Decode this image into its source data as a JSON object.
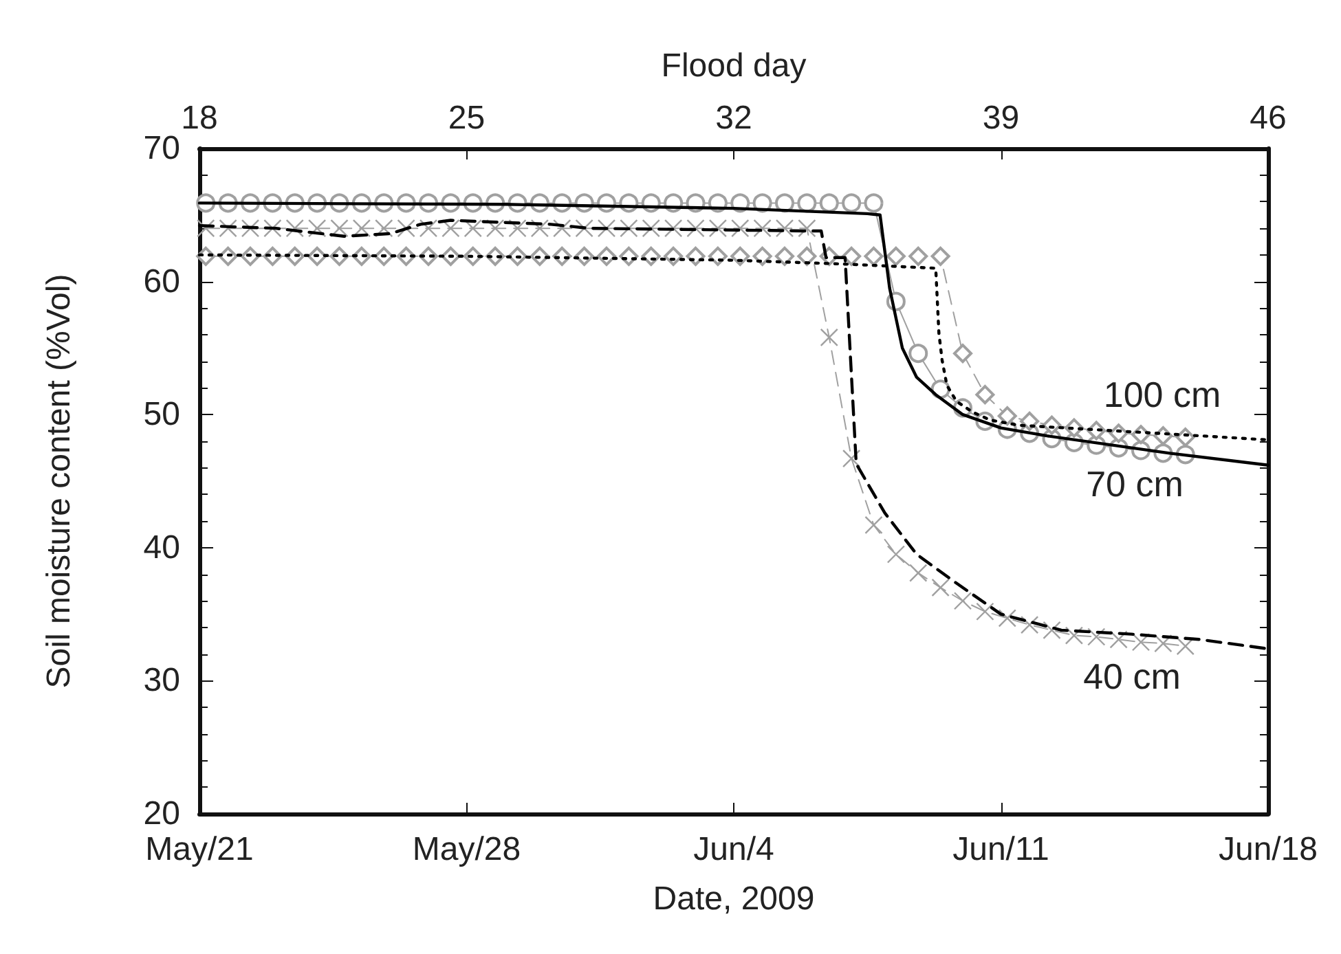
{
  "chart_data": {
    "type": "line",
    "xlabel": "Date, 2009",
    "ylabel": "Soil moisture content (%Vol)",
    "x2label": "Flood day",
    "xlim": [
      "2009-05-21",
      "2009-06-18"
    ],
    "xticks": [
      {
        "value": "2009-05-21",
        "label": "May/21"
      },
      {
        "value": "2009-05-28",
        "label": "May/28"
      },
      {
        "value": "2009-06-04",
        "label": "Jun/4"
      },
      {
        "value": "2009-06-11",
        "label": "Jun/11"
      },
      {
        "value": "2009-06-18",
        "label": "Jun/18"
      }
    ],
    "x2lim": [
      18,
      46
    ],
    "x2ticks": [
      18,
      25,
      32,
      39,
      46
    ],
    "ylim": [
      20,
      70
    ],
    "yticks": [
      20,
      30,
      40,
      50,
      60,
      70
    ],
    "grid": false,
    "series": [
      {
        "color": "#a0a0a0",
        "marker": "circle",
        "line_style": "solid",
        "x": [
          "2009-05-21T04:00",
          "2009-05-21T18:00",
          "2009-05-22T08:00",
          "2009-05-22T22:00",
          "2009-05-23T12:00",
          "2009-05-24T02:00",
          "2009-05-24T16:00",
          "2009-05-25T06:00",
          "2009-05-25T20:00",
          "2009-05-26T10:00",
          "2009-05-27T00:00",
          "2009-05-27T14:00",
          "2009-05-28T04:00",
          "2009-05-28T18:00",
          "2009-05-29T08:00",
          "2009-05-29T22:00",
          "2009-05-30T12:00",
          "2009-05-31T02:00",
          "2009-05-31T16:00",
          "2009-06-01T06:00",
          "2009-06-01T20:00",
          "2009-06-02T10:00",
          "2009-06-03T00:00",
          "2009-06-03T14:00",
          "2009-06-04T04:00",
          "2009-06-04T18:00",
          "2009-06-05T08:00",
          "2009-06-05T22:00",
          "2009-06-06T12:00",
          "2009-06-07T02:00",
          "2009-06-07T16:00",
          "2009-06-08T06:00",
          "2009-06-08T20:00",
          "2009-06-09T10:00",
          "2009-06-10T00:00",
          "2009-06-10T14:00",
          "2009-06-11T04:00",
          "2009-06-11T18:00",
          "2009-06-12T08:00",
          "2009-06-12T22:00",
          "2009-06-13T12:00",
          "2009-06-14T02:00",
          "2009-06-14T16:00",
          "2009-06-15T06:00",
          "2009-06-15T20:00"
        ],
        "values": [
          65.9,
          65.9,
          65.9,
          65.9,
          65.9,
          65.9,
          65.9,
          65.9,
          65.9,
          65.9,
          65.9,
          65.9,
          65.9,
          65.9,
          65.9,
          65.9,
          65.9,
          65.9,
          65.9,
          65.9,
          65.9,
          65.9,
          65.9,
          65.9,
          65.9,
          65.9,
          65.9,
          65.9,
          65.9,
          65.9,
          65.9,
          58.5,
          54.6,
          51.9,
          50.5,
          49.5,
          48.9,
          48.6,
          48.2,
          47.9,
          47.7,
          47.5,
          47.3,
          47.1,
          47.0
        ]
      },
      {
        "color": "#a0a0a0",
        "marker": "diamond",
        "line_style": "dashed",
        "x": [
          "2009-05-21T04:00",
          "2009-05-21T18:00",
          "2009-05-22T08:00",
          "2009-05-22T22:00",
          "2009-05-23T12:00",
          "2009-05-24T02:00",
          "2009-05-24T16:00",
          "2009-05-25T06:00",
          "2009-05-25T20:00",
          "2009-05-26T10:00",
          "2009-05-27T00:00",
          "2009-05-27T14:00",
          "2009-05-28T04:00",
          "2009-05-28T18:00",
          "2009-05-29T08:00",
          "2009-05-29T22:00",
          "2009-05-30T12:00",
          "2009-05-31T02:00",
          "2009-05-31T16:00",
          "2009-06-01T06:00",
          "2009-06-01T20:00",
          "2009-06-02T10:00",
          "2009-06-03T00:00",
          "2009-06-03T14:00",
          "2009-06-04T04:00",
          "2009-06-04T18:00",
          "2009-06-05T08:00",
          "2009-06-05T22:00",
          "2009-06-06T12:00",
          "2009-06-07T02:00",
          "2009-06-07T16:00",
          "2009-06-08T06:00",
          "2009-06-08T20:00",
          "2009-06-09T10:00",
          "2009-06-10T00:00",
          "2009-06-10T14:00",
          "2009-06-11T04:00",
          "2009-06-11T18:00",
          "2009-06-12T08:00",
          "2009-06-12T22:00",
          "2009-06-13T12:00",
          "2009-06-14T02:00",
          "2009-06-14T16:00",
          "2009-06-15T06:00",
          "2009-06-15T20:00"
        ],
        "values": [
          61.9,
          61.9,
          61.9,
          61.9,
          61.9,
          61.9,
          61.9,
          61.9,
          61.9,
          61.9,
          61.9,
          61.9,
          61.9,
          61.9,
          61.9,
          61.9,
          61.9,
          61.9,
          61.9,
          61.9,
          61.9,
          61.9,
          61.9,
          61.9,
          61.9,
          61.9,
          61.9,
          61.9,
          61.9,
          61.9,
          61.9,
          61.9,
          61.9,
          61.9,
          54.6,
          51.5,
          49.9,
          49.5,
          49.2,
          49.0,
          48.8,
          48.6,
          48.5,
          48.4,
          48.3
        ]
      },
      {
        "color": "#a0a0a0",
        "marker": "cross",
        "line_style": "dashed",
        "x": [
          "2009-05-21T04:00",
          "2009-05-21T18:00",
          "2009-05-22T08:00",
          "2009-05-22T22:00",
          "2009-05-23T12:00",
          "2009-05-24T02:00",
          "2009-05-24T16:00",
          "2009-05-25T06:00",
          "2009-05-25T20:00",
          "2009-05-26T10:00",
          "2009-05-27T00:00",
          "2009-05-27T14:00",
          "2009-05-28T04:00",
          "2009-05-28T18:00",
          "2009-05-29T08:00",
          "2009-05-29T22:00",
          "2009-05-30T12:00",
          "2009-05-31T02:00",
          "2009-05-31T16:00",
          "2009-06-01T06:00",
          "2009-06-01T20:00",
          "2009-06-02T10:00",
          "2009-06-03T00:00",
          "2009-06-03T14:00",
          "2009-06-04T04:00",
          "2009-06-04T18:00",
          "2009-06-05T08:00",
          "2009-06-05T22:00",
          "2009-06-06T12:00",
          "2009-06-07T02:00",
          "2009-06-07T16:00",
          "2009-06-08T06:00",
          "2009-06-08T20:00",
          "2009-06-09T10:00",
          "2009-06-10T00:00",
          "2009-06-10T14:00",
          "2009-06-11T04:00",
          "2009-06-11T18:00",
          "2009-06-12T08:00",
          "2009-06-12T22:00",
          "2009-06-13T12:00",
          "2009-06-14T02:00",
          "2009-06-14T16:00",
          "2009-06-15T06:00",
          "2009-06-15T20:00"
        ],
        "values": [
          64.0,
          64.0,
          64.0,
          64.0,
          64.0,
          64.0,
          64.0,
          64.0,
          64.0,
          64.0,
          64.0,
          64.0,
          64.0,
          64.0,
          64.0,
          64.0,
          64.0,
          64.0,
          64.0,
          64.0,
          64.0,
          64.0,
          64.0,
          64.0,
          64.0,
          64.0,
          64.0,
          64.0,
          55.8,
          46.7,
          41.7,
          39.5,
          38.1,
          37.0,
          36.0,
          35.2,
          34.7,
          34.2,
          33.8,
          33.4,
          33.3,
          33.1,
          32.9,
          32.8,
          32.6
        ]
      },
      {
        "color": "#000000",
        "marker": "none",
        "line_style": "solid",
        "x": [
          "2009-05-21T00:00",
          "2009-05-29T00:00",
          "2009-06-04T00:00",
          "2009-06-07T12:00",
          "2009-06-07T20:00",
          "2009-06-08T02:00",
          "2009-06-08T10:00",
          "2009-06-08T19:00",
          "2009-06-09T07:00",
          "2009-06-10T00:00",
          "2009-06-11T00:00",
          "2009-06-12T05:00",
          "2009-06-15T10:00",
          "2009-06-18T00:00"
        ],
        "values": [
          65.9,
          65.8,
          65.5,
          65.1,
          65.0,
          59.5,
          55.0,
          52.8,
          51.5,
          50.0,
          49.0,
          48.4,
          47.1,
          46.2
        ]
      },
      {
        "color": "#000000",
        "marker": "none",
        "line_style": "dotted",
        "x": [
          "2009-05-21T00:00",
          "2009-05-28T00:00",
          "2009-06-04T00:00",
          "2009-06-07T00:00",
          "2009-06-09T07:00",
          "2009-06-09T09:00",
          "2009-06-09T11:00",
          "2009-06-09T14:00",
          "2009-06-09T20:00",
          "2009-06-10T06:00",
          "2009-06-10T17:00",
          "2009-06-11T11:00",
          "2009-06-13T21:00",
          "2009-06-16T06:00",
          "2009-06-18T00:00"
        ],
        "values": [
          62.0,
          61.9,
          61.6,
          61.3,
          61.0,
          56.1,
          54.1,
          52.2,
          51.0,
          50.2,
          49.6,
          49.2,
          48.8,
          48.4,
          48.1
        ]
      },
      {
        "color": "#000000",
        "marker": "none",
        "line_style": "dashed",
        "x": [
          "2009-05-21T00:00",
          "2009-05-23T00:00",
          "2009-05-24T19:00",
          "2009-05-26T00:00",
          "2009-05-26T19:00",
          "2009-05-27T14:00",
          "2009-05-30T05:00",
          "2009-05-31T05:00",
          "2009-06-06T00:00",
          "2009-06-06T07:00",
          "2009-06-06T10:00",
          "2009-06-06T22:00",
          "2009-06-07T05:00",
          "2009-06-07T23:00",
          "2009-06-08T19:00",
          "2009-06-09T18:00",
          "2009-06-11T00:00",
          "2009-06-12T14:00",
          "2009-06-14T10:00",
          "2009-06-16T05:00",
          "2009-06-18T00:00"
        ],
        "values": [
          64.2,
          64.0,
          63.4,
          63.6,
          64.3,
          64.6,
          64.3,
          64.0,
          63.8,
          63.8,
          61.8,
          61.8,
          46.3,
          42.6,
          39.5,
          37.5,
          35.0,
          33.8,
          33.5,
          33.1,
          32.4
        ]
      }
    ],
    "annotations": [
      "100 cm",
      "70 cm",
      "40 cm"
    ]
  }
}
